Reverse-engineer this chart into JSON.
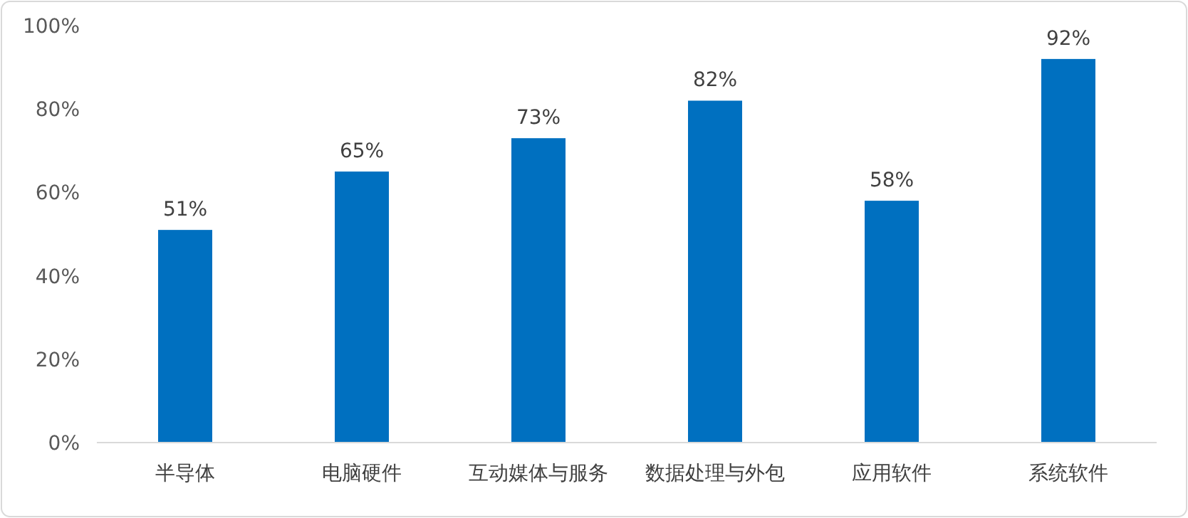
{
  "chart_data": {
    "type": "bar",
    "categories": [
      "半导体",
      "电脑硬件",
      "互动媒体与服务",
      "数据处理与外包",
      "应用软件",
      "系统软件"
    ],
    "values": [
      51,
      65,
      73,
      82,
      58,
      92
    ],
    "value_labels": [
      "51%",
      "65%",
      "73%",
      "82%",
      "58%",
      "92%"
    ],
    "color": "#0070c0",
    "ylim": [
      0,
      100
    ],
    "yticks": [
      {
        "value": 0,
        "label": "0%"
      },
      {
        "value": 20,
        "label": "20%"
      },
      {
        "value": 40,
        "label": "40%"
      },
      {
        "value": 60,
        "label": "60%"
      },
      {
        "value": 80,
        "label": "80%"
      },
      {
        "value": 100,
        "label": "100%"
      }
    ]
  }
}
